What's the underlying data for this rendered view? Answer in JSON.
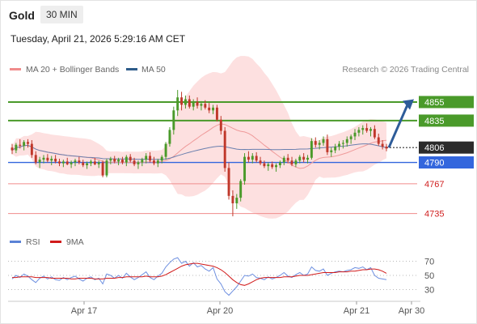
{
  "header": {
    "instrument": "Gold",
    "timeframe": "30 MIN"
  },
  "timestamp": "Tuesday, April 21, 2026 5:29:16 AM CET",
  "legend": [
    {
      "label": "MA 20 + Bollinger Bands",
      "color": "#f08c8c"
    },
    {
      "label": "MA 50",
      "color": "#2e5c8a"
    }
  ],
  "copyright": "Research © 2026 Trading Central",
  "rsi_legend": [
    {
      "label": "RSI",
      "color": "#5a82d6"
    },
    {
      "label": "9MA",
      "color": "#d11a1a"
    }
  ],
  "colors": {
    "up": "#4a9a2a",
    "down": "#c0382b",
    "support": "#f08c8c",
    "pivot": "#3366dd",
    "resistance": "#4a9a2a",
    "arrow": "#2e5c99",
    "band": "#fde0e0"
  },
  "chart_data": [
    {
      "type": "candlestick",
      "x_ticks": [
        "Apr 17",
        "Apr 20",
        "Apr 21",
        "Apr 30"
      ],
      "ylim": [
        4712,
        4882
      ],
      "candles_ohlc": [
        [
          4806,
          4810,
          4799,
          4803
        ],
        [
          4803,
          4811,
          4800,
          4809
        ],
        [
          4809,
          4815,
          4805,
          4808
        ],
        [
          4808,
          4814,
          4803,
          4812
        ],
        [
          4812,
          4815,
          4806,
          4810
        ],
        [
          4810,
          4814,
          4795,
          4798
        ],
        [
          4798,
          4802,
          4788,
          4790
        ],
        [
          4790,
          4796,
          4784,
          4793
        ],
        [
          4793,
          4798,
          4789,
          4795
        ],
        [
          4795,
          4799,
          4790,
          4792
        ],
        [
          4792,
          4797,
          4787,
          4794
        ],
        [
          4794,
          4798,
          4789,
          4791
        ],
        [
          4791,
          4794,
          4786,
          4789
        ],
        [
          4789,
          4793,
          4785,
          4791
        ],
        [
          4791,
          4795,
          4787,
          4788
        ],
        [
          4788,
          4792,
          4784,
          4790
        ],
        [
          4790,
          4794,
          4786,
          4792
        ],
        [
          4792,
          4796,
          4788,
          4790
        ],
        [
          4790,
          4793,
          4785,
          4787
        ],
        [
          4787,
          4791,
          4783,
          4789
        ],
        [
          4789,
          4793,
          4786,
          4791
        ],
        [
          4791,
          4795,
          4787,
          4788
        ],
        [
          4788,
          4792,
          4784,
          4790
        ],
        [
          4790,
          4792,
          4774,
          4776
        ],
        [
          4776,
          4794,
          4774,
          4792
        ],
        [
          4792,
          4796,
          4788,
          4794
        ],
        [
          4794,
          4797,
          4789,
          4791
        ],
        [
          4791,
          4795,
          4787,
          4793
        ],
        [
          4793,
          4796,
          4788,
          4790
        ],
        [
          4790,
          4798,
          4786,
          4796
        ],
        [
          4796,
          4799,
          4790,
          4792
        ],
        [
          4792,
          4795,
          4786,
          4788
        ],
        [
          4788,
          4792,
          4783,
          4790
        ],
        [
          4790,
          4795,
          4786,
          4793
        ],
        [
          4793,
          4800,
          4789,
          4797
        ],
        [
          4797,
          4801,
          4790,
          4792
        ],
        [
          4792,
          4796,
          4787,
          4789
        ],
        [
          4789,
          4794,
          4785,
          4792
        ],
        [
          4792,
          4798,
          4789,
          4796
        ],
        [
          4796,
          4812,
          4793,
          4810
        ],
        [
          4810,
          4828,
          4807,
          4825
        ],
        [
          4825,
          4850,
          4820,
          4846
        ],
        [
          4846,
          4868,
          4840,
          4860
        ],
        [
          4860,
          4866,
          4846,
          4852
        ],
        [
          4852,
          4862,
          4848,
          4858
        ],
        [
          4858,
          4862,
          4848,
          4850
        ],
        [
          4850,
          4858,
          4846,
          4855
        ],
        [
          4855,
          4860,
          4848,
          4851
        ],
        [
          4851,
          4856,
          4846,
          4853
        ],
        [
          4853,
          4857,
          4847,
          4849
        ],
        [
          4849,
          4854,
          4843,
          4846
        ],
        [
          4846,
          4852,
          4842,
          4849
        ],
        [
          4849,
          4852,
          4834,
          4836
        ],
        [
          4836,
          4840,
          4820,
          4824
        ],
        [
          4824,
          4828,
          4780,
          4784
        ],
        [
          4784,
          4790,
          4750,
          4754
        ],
        [
          4754,
          4760,
          4732,
          4746
        ],
        [
          4746,
          4756,
          4740,
          4752
        ],
        [
          4752,
          4772,
          4748,
          4770
        ],
        [
          4770,
          4800,
          4766,
          4796
        ],
        [
          4796,
          4802,
          4790,
          4793
        ],
        [
          4793,
          4800,
          4789,
          4797
        ],
        [
          4797,
          4801,
          4790,
          4792
        ],
        [
          4792,
          4796,
          4787,
          4789
        ],
        [
          4789,
          4792,
          4784,
          4786
        ],
        [
          4786,
          4790,
          4781,
          4788
        ],
        [
          4788,
          4791,
          4783,
          4785
        ],
        [
          4785,
          4789,
          4780,
          4787
        ],
        [
          4787,
          4792,
          4784,
          4790
        ],
        [
          4790,
          4797,
          4787,
          4795
        ],
        [
          4795,
          4799,
          4789,
          4792
        ],
        [
          4792,
          4796,
          4786,
          4788
        ],
        [
          4788,
          4794,
          4785,
          4792
        ],
        [
          4792,
          4798,
          4789,
          4796
        ],
        [
          4796,
          4800,
          4790,
          4793
        ],
        [
          4793,
          4798,
          4789,
          4795
        ],
        [
          4795,
          4816,
          4793,
          4813
        ],
        [
          4813,
          4817,
          4806,
          4809
        ],
        [
          4809,
          4814,
          4804,
          4811
        ],
        [
          4811,
          4818,
          4808,
          4815
        ],
        [
          4815,
          4820,
          4798,
          4801
        ],
        [
          4801,
          4806,
          4796,
          4803
        ],
        [
          4803,
          4810,
          4800,
          4807
        ],
        [
          4807,
          4813,
          4803,
          4810
        ],
        [
          4810,
          4814,
          4805,
          4811
        ],
        [
          4811,
          4818,
          4807,
          4815
        ],
        [
          4815,
          4820,
          4810,
          4818
        ],
        [
          4818,
          4826,
          4814,
          4822
        ],
        [
          4822,
          4828,
          4818,
          4825
        ],
        [
          4825,
          4830,
          4820,
          4827
        ],
        [
          4827,
          4832,
          4822,
          4824
        ],
        [
          4824,
          4828,
          4818,
          4826
        ],
        [
          4826,
          4830,
          4815,
          4817
        ],
        [
          4817,
          4821,
          4808,
          4810
        ],
        [
          4810,
          4814,
          4804,
          4807
        ],
        [
          4807,
          4810,
          4802,
          4805
        ]
      ],
      "levels": [
        {
          "value": 4855,
          "label": "4855",
          "role": "resistance"
        },
        {
          "value": 4835,
          "label": "4835",
          "role": "resistance"
        },
        {
          "value": 4806,
          "label": "4806",
          "role": "last"
        },
        {
          "value": 4790,
          "label": "4790",
          "role": "pivot"
        },
        {
          "value": 4767,
          "label": "4767",
          "role": "support"
        },
        {
          "value": 4735,
          "label": "4735",
          "role": "support"
        }
      ]
    },
    {
      "type": "line",
      "name": "RSI",
      "y_ticks": [
        70,
        50,
        30
      ],
      "ylim": [
        18,
        82
      ],
      "series": [
        {
          "name": "RSI",
          "values": [
            45,
            50,
            47,
            52,
            49,
            44,
            40,
            46,
            49,
            45,
            48,
            44,
            43,
            47,
            44,
            47,
            49,
            45,
            42,
            46,
            48,
            44,
            46,
            38,
            52,
            50,
            46,
            50,
            46,
            53,
            48,
            44,
            47,
            51,
            55,
            47,
            44,
            49,
            53,
            62,
            68,
            73,
            75,
            67,
            70,
            63,
            68,
            62,
            64,
            59,
            56,
            61,
            45,
            38,
            27,
            22,
            28,
            34,
            42,
            50,
            49,
            52,
            47,
            46,
            44,
            48,
            45,
            47,
            50,
            54,
            49,
            47,
            51,
            54,
            50,
            52,
            62,
            57,
            56,
            59,
            50,
            53,
            55,
            56,
            55,
            57,
            58,
            61,
            60,
            62,
            58,
            61,
            50,
            46,
            45,
            44
          ]
        },
        {
          "name": "9MA",
          "values": [
            47,
            47,
            48,
            48,
            48,
            48,
            47,
            47,
            47,
            47,
            46,
            46,
            46,
            46,
            46,
            45,
            45,
            46,
            46,
            46,
            46,
            45,
            45,
            45,
            46,
            46,
            46,
            47,
            47,
            48,
            48,
            48,
            48,
            48,
            49,
            48,
            48,
            48,
            49,
            51,
            54,
            57,
            60,
            63,
            65,
            66,
            67,
            67,
            66,
            65,
            64,
            63,
            61,
            58,
            54,
            49,
            44,
            40,
            37,
            36,
            38,
            41,
            44,
            46,
            47,
            47,
            47,
            47,
            47,
            48,
            48,
            48,
            49,
            50,
            50,
            50,
            51,
            52,
            53,
            54,
            54,
            54,
            54,
            55,
            55,
            55,
            56,
            56,
            57,
            58,
            58,
            59,
            59,
            58,
            56,
            53
          ]
        }
      ]
    }
  ]
}
